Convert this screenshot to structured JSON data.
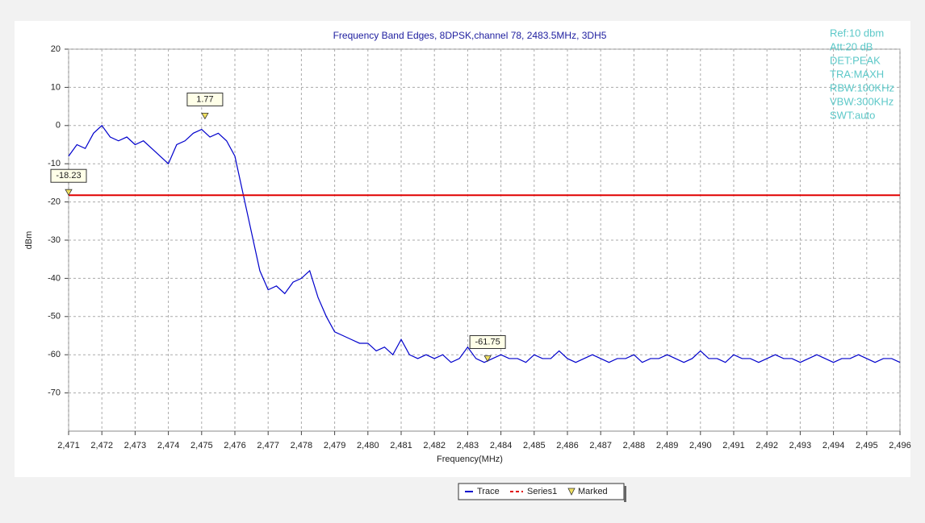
{
  "chart_data": {
    "type": "line",
    "title": "Frequency Band Edges, 8DPSK,channel 78, 2483.5MHz, 3DH5",
    "xlabel": "Frequency(MHz)",
    "ylabel": "dBm",
    "annotations": [
      "Ref:10 dbm",
      "Att:20 dB",
      "DET:PEAK",
      "TRA:MAXH",
      "RBW:100KHz",
      "VBW:300KHz",
      "SWT:auto"
    ],
    "xlim": [
      2471,
      2496
    ],
    "ylim": [
      -80,
      20
    ],
    "yticks": [
      20,
      10,
      0,
      -10,
      -20,
      -30,
      -40,
      -50,
      -60,
      -70
    ],
    "xticks": [
      {
        "value": 2471,
        "label": "2,471"
      },
      {
        "value": 2472,
        "label": "2,472"
      },
      {
        "value": 2473,
        "label": "2,473"
      },
      {
        "value": 2474,
        "label": "2,474"
      },
      {
        "value": 2475,
        "label": "2,475"
      },
      {
        "value": 2476,
        "label": "2,476"
      },
      {
        "value": 2477,
        "label": "2,477"
      },
      {
        "value": 2478,
        "label": "2,478"
      },
      {
        "value": 2479,
        "label": "2,479"
      },
      {
        "value": 2480,
        "label": "2,480"
      },
      {
        "value": 2481,
        "label": "2,481"
      },
      {
        "value": 2482,
        "label": "2,482"
      },
      {
        "value": 2483,
        "label": "2,483"
      },
      {
        "value": 2484,
        "label": "2,484"
      },
      {
        "value": 2485,
        "label": "2,485"
      },
      {
        "value": 2486,
        "label": "2,486"
      },
      {
        "value": 2487,
        "label": "2,487"
      },
      {
        "value": 2488,
        "label": "2,488"
      },
      {
        "value": 2489,
        "label": "2,489"
      },
      {
        "value": 2490,
        "label": "2,490"
      },
      {
        "value": 2491,
        "label": "2,491"
      },
      {
        "value": 2492,
        "label": "2,492"
      },
      {
        "value": 2493,
        "label": "2,493"
      },
      {
        "value": 2494,
        "label": "2,494"
      },
      {
        "value": 2495,
        "label": "2,495"
      },
      {
        "value": 2496,
        "label": "2,496"
      }
    ],
    "grid": true,
    "legend": "bottom",
    "x": [
      2471,
      2471.25,
      2471.5,
      2471.75,
      2472,
      2472.25,
      2472.5,
      2472.75,
      2473,
      2473.25,
      2473.5,
      2473.75,
      2474,
      2474.25,
      2474.5,
      2474.75,
      2475,
      2475.25,
      2475.5,
      2475.75,
      2476,
      2476.25,
      2476.5,
      2476.75,
      2477,
      2477.25,
      2477.5,
      2477.75,
      2478,
      2478.25,
      2478.5,
      2478.75,
      2479,
      2479.25,
      2479.5,
      2479.75,
      2480,
      2480.25,
      2480.5,
      2480.75,
      2481,
      2481.25,
      2481.5,
      2481.75,
      2482,
      2482.25,
      2482.5,
      2482.75,
      2483,
      2483.25,
      2483.5,
      2483.75,
      2484,
      2484.25,
      2484.5,
      2484.75,
      2485,
      2485.25,
      2485.5,
      2485.75,
      2486,
      2486.25,
      2486.5,
      2486.75,
      2487,
      2487.25,
      2487.5,
      2487.75,
      2488,
      2488.25,
      2488.5,
      2488.75,
      2489,
      2489.25,
      2489.5,
      2489.75,
      2490,
      2490.25,
      2490.5,
      2490.75,
      2491,
      2491.25,
      2491.5,
      2491.75,
      2492,
      2492.25,
      2492.5,
      2492.75,
      2493,
      2493.25,
      2493.5,
      2493.75,
      2494,
      2494.25,
      2494.5,
      2494.75,
      2495,
      2495.25,
      2495.5,
      2495.75,
      2496
    ],
    "series": [
      {
        "name": "Trace",
        "color": "#0000cc",
        "values": [
          -8,
          -5,
          -6,
          -2,
          0,
          -3,
          -4,
          -3,
          -5,
          -4,
          -6,
          -8,
          -10,
          -5,
          -4,
          -2,
          -1,
          -3,
          -2,
          -4,
          -8,
          -18,
          -28,
          -38,
          -43,
          -42,
          -44,
          -41,
          -40,
          -38,
          -45,
          -50,
          -54,
          -55,
          -56,
          -57,
          -57,
          -59,
          -58,
          -60,
          -56,
          -60,
          -61,
          -60,
          -61,
          -60,
          -62,
          -61,
          -58,
          -61,
          -62,
          -61,
          -60,
          -61,
          -61,
          -62,
          -60,
          -61,
          -61,
          -59,
          -61,
          -62,
          -61,
          -60,
          -61,
          -62,
          -61,
          -61,
          -60,
          -62,
          -61,
          -61,
          -60,
          -61,
          -62,
          -61,
          -59,
          -61,
          -61,
          -62,
          -60,
          -61,
          -61,
          -62,
          -61,
          -60,
          -61,
          -61,
          -62,
          -61,
          -60,
          -61,
          -62,
          -61,
          -61,
          -60,
          -61,
          -62,
          -61,
          -61,
          -62
        ]
      }
    ],
    "reference_line": {
      "name": "Series1",
      "color": "#e00000",
      "value": -18.23
    },
    "markers": {
      "name": "Marked",
      "color": "#f0e060",
      "x": [
        2471,
        2475.1,
        2483.6
      ],
      "values": [
        -18.23,
        1.77,
        -61.75
      ]
    }
  }
}
